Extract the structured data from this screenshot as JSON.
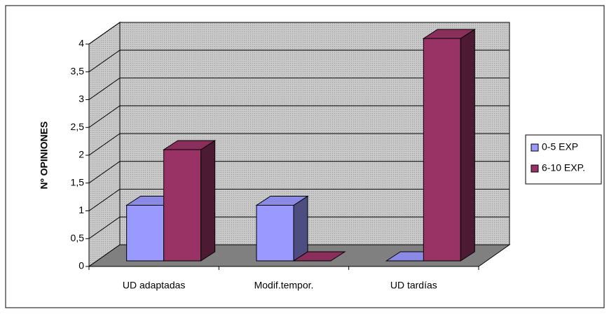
{
  "chart_data": {
    "type": "bar3d",
    "y_label": "Nº OPINIONES",
    "categories": [
      "UD adaptadas",
      "Modif.tempor.",
      "UD tardías"
    ],
    "series": [
      {
        "name": "0-5 EXP",
        "color": "#9999ff",
        "values": [
          1,
          1,
          0
        ]
      },
      {
        "name": "6-10 EXP.",
        "color": "#993366",
        "values": [
          2,
          0,
          4
        ]
      }
    ],
    "ylim": [
      0,
      4
    ],
    "yticks": [
      0,
      {
        "value": 0.5,
        "label": "0,5"
      },
      1,
      {
        "value": 1.5,
        "label": "1,5"
      },
      2,
      {
        "value": 2.5,
        "label": "2,5"
      },
      3,
      {
        "value": 3.5,
        "label": "3,5"
      },
      4
    ],
    "grid": true,
    "legend": "right"
  }
}
